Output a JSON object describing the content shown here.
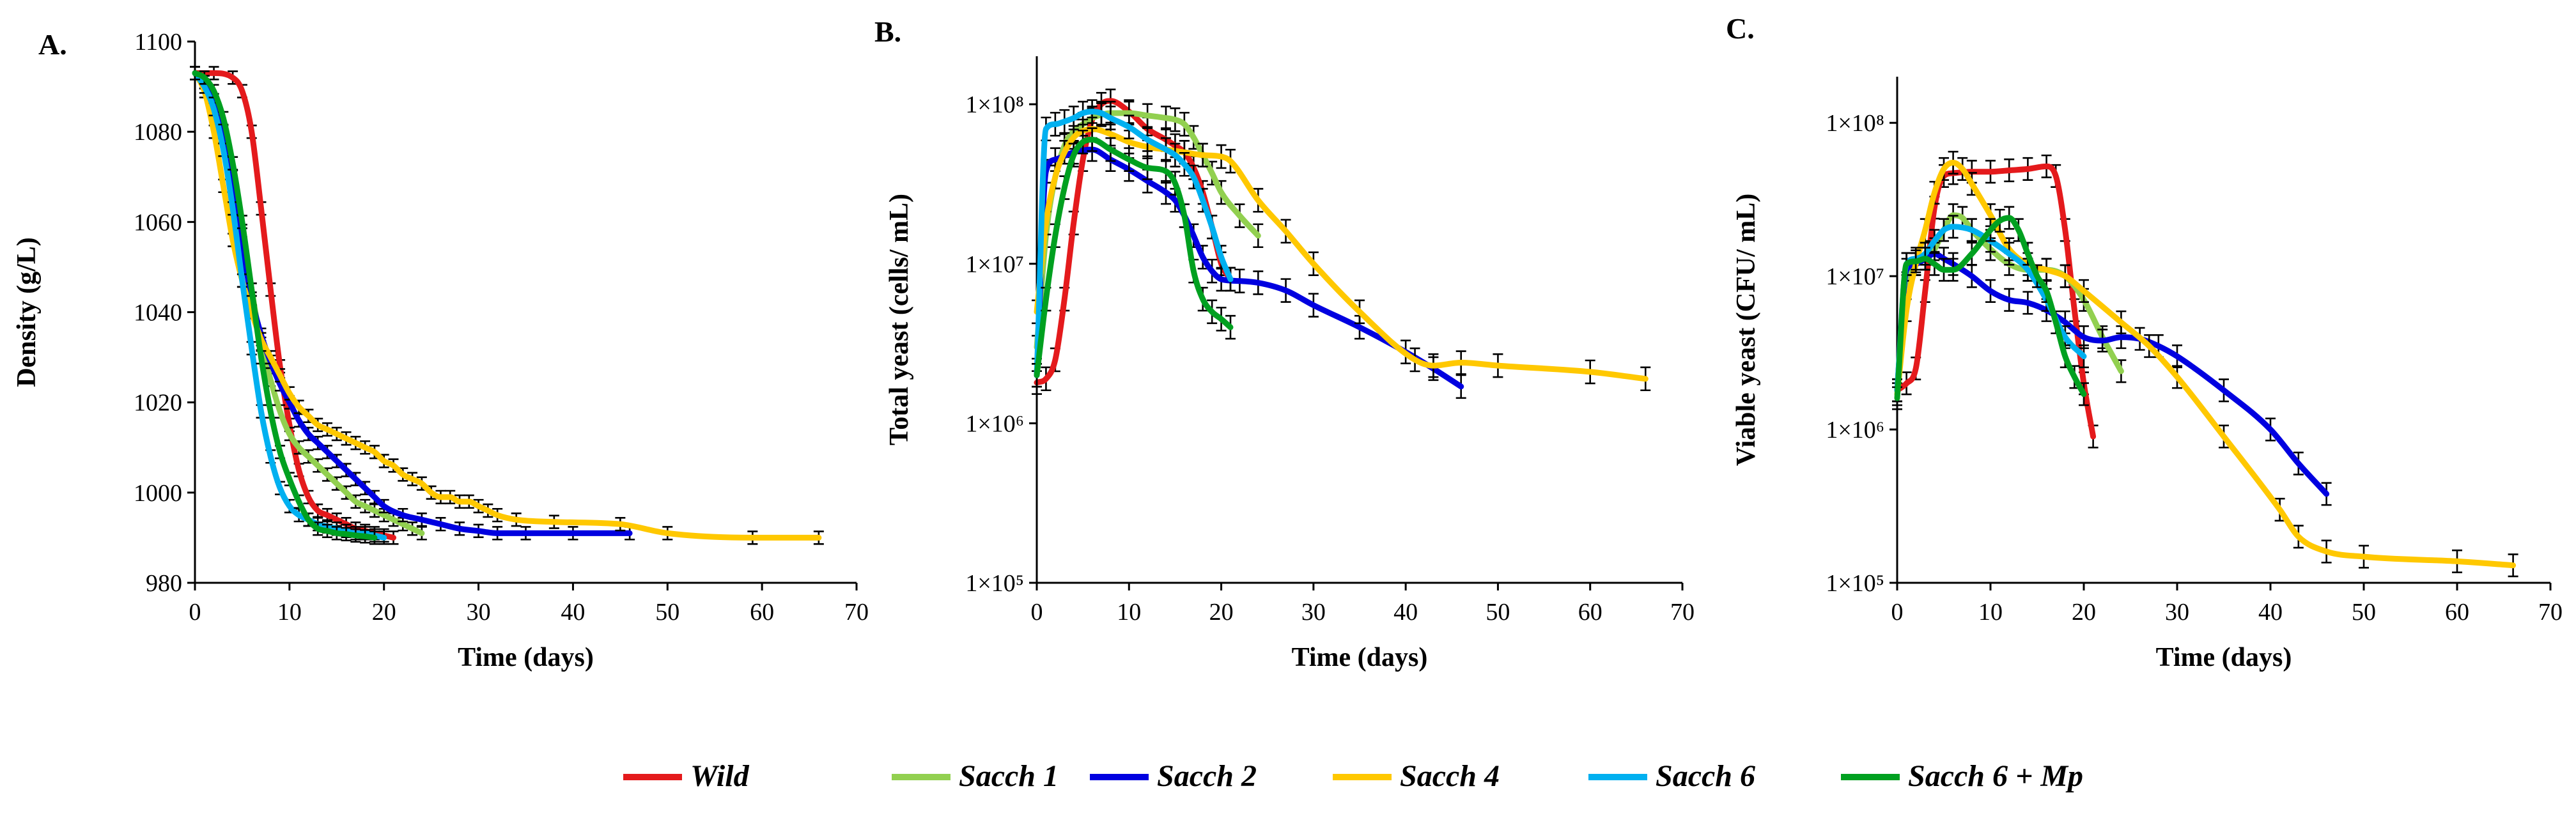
{
  "colors": {
    "Wild": "#e41a1c",
    "Sacch 1": "#92d050",
    "Sacch 2": "#0000e0",
    "Sacch 4": "#ffc800",
    "Sacch 6": "#00b0f0",
    "Sacch 6 + Mp": "#00a020"
  },
  "legend": [
    {
      "name": "Wild",
      "label": "Wild",
      "icon": "line-swatch"
    },
    {
      "name": "Sacch 1",
      "label": "Sacch 1",
      "icon": "line-swatch"
    },
    {
      "name": "Sacch 2",
      "label": "Sacch 2",
      "icon": "line-swatch"
    },
    {
      "name": "Sacch 4",
      "label": "Sacch 4",
      "icon": "line-swatch"
    },
    {
      "name": "Sacch 6",
      "label": "Sacch 6",
      "icon": "line-swatch"
    },
    {
      "name": "Sacch 6 + Mp",
      "label": "Sacch 6 + Mp",
      "icon": "line-swatch"
    }
  ],
  "chart_data": [
    {
      "id": "A",
      "panel_label": "A.",
      "type": "line",
      "title": "",
      "xlabel": "Time (days)",
      "ylabel": "Density (g/L)",
      "yscale": "linear",
      "xlim": [
        0,
        70
      ],
      "ylim": [
        980,
        1100
      ],
      "xticks": [
        0,
        10,
        20,
        30,
        40,
        50,
        60,
        70
      ],
      "xtick_labels": [
        "0",
        "10",
        "20",
        "30",
        "40",
        "50",
        "60",
        "70"
      ],
      "yticks": [
        980,
        1000,
        1020,
        1040,
        1060,
        1080,
        1100
      ],
      "ytick_labels": [
        "980",
        "1000",
        "1020",
        "1040",
        "1060",
        "1080",
        "1100"
      ],
      "grid": false,
      "series": [
        {
          "name": "Wild",
          "x": [
            0,
            2,
            4,
            5,
            6,
            7,
            8,
            9,
            10,
            11,
            12,
            13,
            14,
            15,
            16,
            17,
            18,
            19,
            20,
            21
          ],
          "y": [
            1093,
            1093,
            1092,
            1089,
            1080,
            1063,
            1045,
            1028,
            1015,
            1005,
            999,
            996,
            995,
            994,
            993,
            992,
            991.5,
            991,
            990.5,
            990
          ]
        },
        {
          "name": "Sacch 1",
          "x": [
            0,
            1,
            2,
            3,
            4,
            5,
            6,
            7,
            8,
            9,
            10,
            11,
            12,
            13,
            14,
            15,
            16,
            17,
            18,
            19,
            20,
            21,
            22,
            23,
            24
          ],
          "y": [
            1093,
            1091,
            1087,
            1080,
            1070,
            1058,
            1045,
            1033,
            1025,
            1018,
            1013,
            1010,
            1008,
            1006,
            1004,
            1002,
            1000,
            998,
            997,
            996,
            995,
            994,
            993,
            992,
            991
          ]
        },
        {
          "name": "Sacch 2",
          "x": [
            0,
            1,
            2,
            3,
            4,
            5,
            6,
            7,
            8,
            9,
            10,
            11,
            12,
            13,
            14,
            15,
            16,
            17,
            18,
            19,
            20,
            22,
            24,
            26,
            28,
            30,
            32,
            35,
            40,
            46
          ],
          "y": [
            1093,
            1091,
            1087,
            1079,
            1068,
            1055,
            1043,
            1035,
            1029,
            1024,
            1020,
            1016,
            1013,
            1011,
            1009,
            1007,
            1005,
            1003,
            1001,
            999,
            997,
            995,
            994,
            993,
            992,
            991.5,
            991,
            991,
            991,
            991
          ]
        },
        {
          "name": "Sacch 4",
          "x": [
            0,
            1,
            2,
            3,
            4,
            5,
            6,
            7,
            8,
            9,
            10,
            11,
            12,
            13,
            14,
            15,
            16,
            17,
            18,
            19,
            20,
            21,
            22,
            23,
            24,
            25,
            26,
            27,
            28,
            29,
            30,
            31,
            32,
            34,
            38,
            45,
            50,
            59,
            66
          ],
          "y": [
            1093,
            1089,
            1080,
            1068,
            1056,
            1047,
            1040,
            1034,
            1030,
            1026,
            1022,
            1019,
            1017,
            1015,
            1014,
            1013,
            1012,
            1011,
            1010,
            1009,
            1007,
            1006,
            1004,
            1003,
            1002,
            1000,
            999,
            999,
            998,
            998,
            997,
            996,
            995,
            994,
            993.5,
            993,
            991,
            990,
            990
          ]
        },
        {
          "name": "Sacch 6",
          "x": [
            0,
            1,
            2,
            3,
            4,
            5,
            6,
            7,
            8,
            9,
            10,
            11,
            12,
            13,
            14,
            15,
            16,
            17,
            18,
            19,
            20
          ],
          "y": [
            1093,
            1090,
            1085,
            1076,
            1063,
            1047,
            1032,
            1018,
            1008,
            1001,
            997,
            995,
            994,
            993,
            992.5,
            992,
            991.5,
            991,
            991,
            990.5,
            990
          ]
        },
        {
          "name": "Sacch 6 + Mp",
          "x": [
            0,
            1,
            2,
            3,
            4,
            5,
            6,
            7,
            8,
            9,
            10,
            11,
            12,
            13,
            14,
            15,
            16,
            17,
            18,
            19
          ],
          "y": [
            1093,
            1092,
            1089,
            1083,
            1073,
            1060,
            1045,
            1030,
            1018,
            1009,
            1003,
            998,
            994,
            992,
            991.5,
            991,
            990.8,
            990.5,
            990.3,
            990
          ]
        }
      ]
    },
    {
      "id": "B",
      "panel_label": "B.",
      "type": "line",
      "title": "",
      "xlabel": "Time (days)",
      "ylabel": "Total yeast (cells/ mL)",
      "yscale": "log",
      "xlim": [
        0,
        70
      ],
      "ylim": [
        100000,
        200000000
      ],
      "xticks": [
        0,
        10,
        20,
        30,
        40,
        50,
        60,
        70
      ],
      "xtick_labels": [
        "0",
        "10",
        "20",
        "30",
        "40",
        "50",
        "60",
        "70"
      ],
      "yticks": [
        100000,
        1000000,
        10000000,
        100000000
      ],
      "ytick_labels": [
        "1×10⁵",
        "1×10⁶",
        "1×10⁷",
        "1×10⁸"
      ],
      "grid": false,
      "series": [
        {
          "name": "Wild",
          "x": [
            0,
            1,
            2,
            3,
            4,
            5,
            6,
            7,
            8,
            10,
            12,
            14,
            15,
            16,
            17,
            18,
            19,
            20,
            21
          ],
          "y": [
            1800000,
            1900000,
            2500000,
            6000000,
            18000000,
            45000000,
            80000000,
            100000000,
            105000000,
            90000000,
            70000000,
            60000000,
            55000000,
            50000000,
            40000000,
            28000000,
            17000000,
            10000000,
            8000000
          ]
        },
        {
          "name": "Sacch 1",
          "x": [
            0,
            1,
            2,
            3,
            4,
            5,
            6,
            7,
            8,
            10,
            12,
            14,
            15,
            16,
            17,
            18,
            19,
            20,
            22,
            24
          ],
          "y": [
            3000000,
            15000000,
            35000000,
            55000000,
            68000000,
            75000000,
            82000000,
            86000000,
            88000000,
            88000000,
            85000000,
            82000000,
            80000000,
            75000000,
            62000000,
            48000000,
            37000000,
            28000000,
            20000000,
            15000000
          ]
        },
        {
          "name": "Sacch 2",
          "x": [
            0,
            1,
            2,
            4,
            6,
            8,
            10,
            12,
            14,
            15,
            16,
            17,
            18,
            19,
            20,
            22,
            24,
            27,
            30,
            35,
            40,
            43,
            46
          ],
          "y": [
            2000000,
            38000000,
            45000000,
            50000000,
            52000000,
            45000000,
            39000000,
            33000000,
            28000000,
            25000000,
            20000000,
            15000000,
            11000000,
            9000000,
            8000000,
            7800000,
            7600000,
            6800000,
            5500000,
            4000000,
            2800000,
            2200000,
            1700000
          ]
        },
        {
          "name": "Sacch 4",
          "x": [
            0,
            1,
            2,
            3,
            4,
            5,
            6,
            8,
            10,
            12,
            14,
            16,
            18,
            20,
            21,
            24,
            27,
            30,
            35,
            41,
            43,
            46,
            50,
            60,
            66
          ],
          "y": [
            5000000,
            18000000,
            35000000,
            50000000,
            62000000,
            68000000,
            70000000,
            65000000,
            58000000,
            54000000,
            52000000,
            50000000,
            48000000,
            47000000,
            44000000,
            25000000,
            16000000,
            10000000,
            5000000,
            2500000,
            2300000,
            2400000,
            2300000,
            2100000,
            1900000
          ]
        },
        {
          "name": "Sacch 6",
          "x": [
            0,
            1,
            2,
            3,
            4,
            5,
            6,
            7,
            8,
            10,
            12,
            14,
            15,
            16,
            17,
            18,
            19,
            20,
            21
          ],
          "y": [
            2000000,
            70000000,
            75000000,
            78000000,
            82000000,
            88000000,
            90000000,
            88000000,
            82000000,
            72000000,
            60000000,
            52000000,
            48000000,
            42000000,
            35000000,
            25000000,
            17000000,
            11000000,
            8000000
          ]
        },
        {
          "name": "Sacch 6 + Mp",
          "x": [
            0,
            1,
            2,
            3,
            4,
            5,
            6,
            8,
            10,
            12,
            14,
            15,
            16,
            17,
            18,
            19,
            20,
            21
          ],
          "y": [
            2000000,
            6000000,
            15000000,
            30000000,
            48000000,
            58000000,
            60000000,
            52000000,
            45000000,
            40000000,
            38000000,
            32000000,
            20000000,
            9000000,
            6000000,
            5000000,
            4500000,
            4000000
          ]
        }
      ]
    },
    {
      "id": "C",
      "panel_label": "C.",
      "type": "line",
      "title": "",
      "xlabel": "Time (days)",
      "ylabel": "Viable yeast (CFU/ mL)",
      "yscale": "log",
      "xlim": [
        0,
        70
      ],
      "ylim": [
        100000,
        200000000
      ],
      "xticks": [
        0,
        10,
        20,
        30,
        40,
        50,
        60,
        70
      ],
      "xtick_labels": [
        "0",
        "10",
        "20",
        "30",
        "40",
        "50",
        "60",
        "70"
      ],
      "yticks": [
        100000,
        1000000,
        10000000,
        100000000
      ],
      "ytick_labels": [
        "1×10⁵",
        "1×10⁶",
        "1×10⁷",
        "1×10⁸"
      ],
      "grid": false,
      "series": [
        {
          "name": "Wild",
          "x": [
            0,
            1,
            2,
            3,
            4,
            5,
            6,
            8,
            10,
            12,
            14,
            16,
            17,
            18,
            19,
            20,
            21
          ],
          "y": [
            1800000,
            2000000,
            2500000,
            8000000,
            28000000,
            45000000,
            47000000,
            48000000,
            48000000,
            49000000,
            50000000,
            52000000,
            45000000,
            20000000,
            6000000,
            2000000,
            900000
          ]
        },
        {
          "name": "Sacch 1",
          "x": [
            0,
            1,
            2,
            3,
            4,
            5,
            6,
            7,
            8,
            10,
            12,
            14,
            16,
            18,
            20,
            22,
            24
          ],
          "y": [
            1800000,
            9000000,
            12000000,
            13000000,
            15000000,
            20000000,
            25000000,
            24000000,
            20000000,
            15000000,
            12000000,
            11000000,
            11000000,
            10000000,
            7000000,
            4000000,
            2400000
          ]
        },
        {
          "name": "Sacch 2",
          "x": [
            0,
            1,
            2,
            3,
            4,
            5,
            6,
            8,
            10,
            12,
            14,
            16,
            18,
            20,
            22,
            24,
            26,
            28,
            30,
            35,
            40,
            43,
            46
          ],
          "y": [
            1800000,
            11000000,
            12000000,
            13000000,
            14000000,
            13000000,
            12000000,
            10000000,
            8000000,
            7000000,
            6700000,
            6000000,
            5000000,
            4000000,
            3800000,
            4000000,
            3900000,
            3500000,
            3000000,
            1800000,
            1000000,
            600000,
            380000
          ]
        },
        {
          "name": "Sacch 4",
          "x": [
            0,
            1,
            2,
            3,
            4,
            5,
            6,
            7,
            8,
            10,
            12,
            14,
            16,
            18,
            20,
            24,
            27,
            30,
            35,
            41,
            43,
            46,
            50,
            60,
            66
          ],
          "y": [
            1700000,
            6000000,
            12000000,
            20000000,
            35000000,
            50000000,
            55000000,
            50000000,
            40000000,
            25000000,
            15000000,
            12000000,
            11000000,
            10000000,
            8000000,
            5000000,
            3500000,
            2200000,
            900000,
            300000,
            200000,
            160000,
            148000,
            138000,
            130000
          ]
        },
        {
          "name": "Sacch 6",
          "x": [
            0,
            1,
            2,
            3,
            4,
            5,
            6,
            8,
            10,
            12,
            14,
            16,
            18,
            20
          ],
          "y": [
            1800000,
            12000000,
            13000000,
            14000000,
            17000000,
            20000000,
            21000000,
            20000000,
            17000000,
            14000000,
            11000000,
            7000000,
            4000000,
            3000000
          ]
        },
        {
          "name": "Sacch 6 + Mp",
          "x": [
            0,
            1,
            2,
            3,
            4,
            5,
            6,
            8,
            10,
            11,
            12,
            13,
            14,
            15,
            16,
            17,
            18,
            19,
            20
          ],
          "y": [
            1600000,
            12000000,
            12500000,
            13000000,
            12000000,
            11000000,
            11000000,
            14000000,
            20000000,
            23000000,
            24000000,
            20000000,
            14000000,
            10000000,
            8000000,
            5000000,
            3000000,
            2200000,
            1700000
          ]
        }
      ]
    }
  ]
}
